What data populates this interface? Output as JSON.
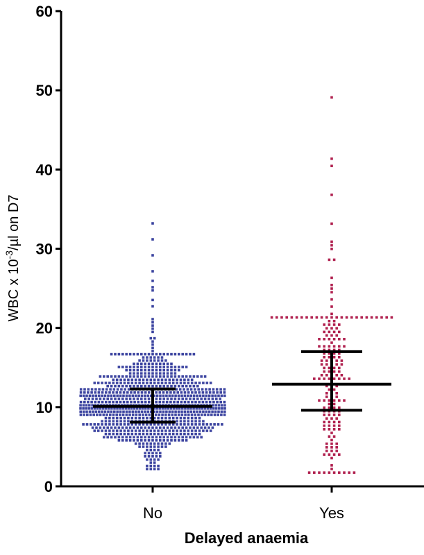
{
  "chart_data": {
    "type": "scatter",
    "chart_subtype": "dot-plot with median and interquartile range",
    "title": "",
    "xlabel": "Delayed anaemia",
    "ylabel_parts": {
      "before": "WBC x 10",
      "superscript": "-3",
      "after": "/µl on D7"
    },
    "ylim": [
      0,
      60
    ],
    "yticks": [
      0,
      10,
      20,
      30,
      40,
      50,
      60
    ],
    "categories": [
      "No",
      "Yes"
    ],
    "grid": false,
    "legend": "none",
    "series": [
      {
        "category": "No",
        "color": "#3c44a0",
        "marker": "square",
        "n_points": 900,
        "min": 2.0,
        "max": 33.5,
        "q1": 8.1,
        "median": 10.1,
        "q3": 12.3,
        "outliers": [
          33.3,
          31.0,
          29.2,
          27.0,
          25.8,
          25.2,
          24.6,
          23.5,
          22.8,
          21.2,
          20.6,
          20.2,
          19.8,
          19.4,
          18.8,
          18.6,
          18.4,
          18.0,
          17.6,
          17.2,
          16.8,
          16.2,
          15.6,
          15.2
        ]
      },
      {
        "category": "Yes",
        "color": "#b0214f",
        "marker": "square",
        "n_points": 190,
        "min": 1.6,
        "max": 49.0,
        "q1": 9.6,
        "median": 12.9,
        "q3": 17.0,
        "outliers": [
          48.9,
          41.4,
          40.6,
          36.7,
          33.3,
          31.0,
          30.4,
          30.1,
          28.7,
          28.4,
          26.4,
          25.6,
          25.0,
          24.4,
          23.6,
          22.6,
          22.0,
          21.4,
          20.8,
          20.4,
          19.9,
          19.4,
          18.8,
          18.3,
          17.8,
          17.4,
          4.2,
          3.8,
          2.8,
          1.6
        ]
      }
    ]
  }
}
